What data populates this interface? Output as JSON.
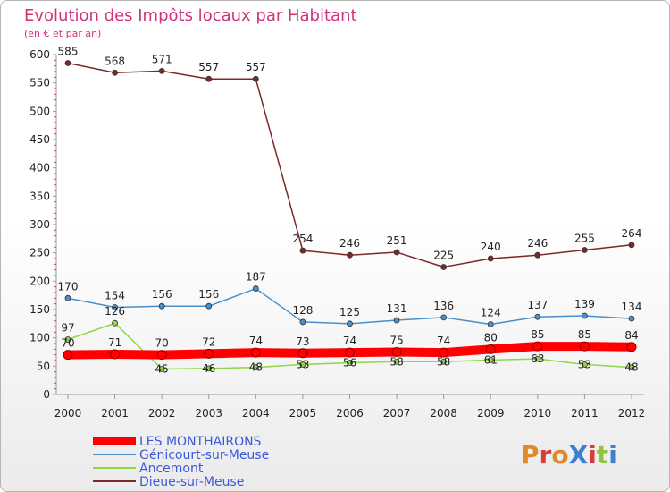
{
  "chart_data": {
    "type": "line",
    "title": "Evolution des Impôts locaux par Habitant",
    "subtitle": "(en € et par an)",
    "x": [
      "2000",
      "2001",
      "2002",
      "2003",
      "2004",
      "2005",
      "2006",
      "2007",
      "2008",
      "2009",
      "2010",
      "2011",
      "2012"
    ],
    "ylim": [
      0,
      600
    ],
    "yticks": [
      0,
      50,
      100,
      150,
      200,
      250,
      300,
      350,
      400,
      450,
      500,
      550,
      600
    ],
    "grid": false,
    "legend_position": "bottom-left",
    "series": [
      {
        "name": "LES MONTHAIRONS",
        "color": "#ff0000",
        "values": [
          70,
          71,
          70,
          72,
          74,
          73,
          74,
          75,
          74,
          80,
          85,
          85,
          84
        ]
      },
      {
        "name": "Génicourt-sur-Meuse",
        "color": "#4a8fc9",
        "values": [
          170,
          154,
          156,
          156,
          187,
          128,
          125,
          131,
          136,
          124,
          137,
          139,
          134
        ]
      },
      {
        "name": "Ancemont",
        "color": "#8fd645",
        "values": [
          97,
          126,
          45,
          46,
          48,
          53,
          56,
          58,
          58,
          61,
          63,
          53,
          48
        ]
      },
      {
        "name": "Dieue-sur-Meuse",
        "color": "#7a2929",
        "values": [
          585,
          568,
          571,
          557,
          557,
          254,
          246,
          251,
          225,
          240,
          246,
          255,
          264
        ]
      }
    ]
  },
  "logo": {
    "text": "ProXiti",
    "letter_colors": [
      "#e0882c",
      "#d63d3d",
      "#e0882c",
      "#3d7fd1",
      "#d63d3d",
      "#8fc43d",
      "#3d7fd1"
    ]
  }
}
